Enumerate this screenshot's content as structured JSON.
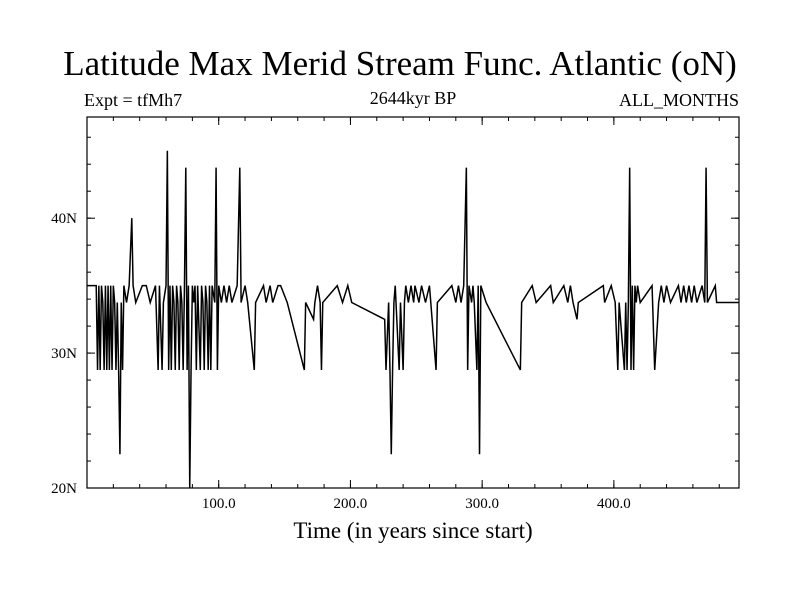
{
  "chart_data": {
    "type": "line",
    "title": "Latitude Max Merid Stream Func. Atlantic (oN)",
    "subtitle_left": "Expt = tfMh7",
    "subtitle_center": "2644kyr BP",
    "subtitle_right": "ALL_MONTHS",
    "xlabel": "Time (in years since start)",
    "ylabel": "",
    "xlim": [
      0,
      495
    ],
    "ylim": [
      20,
      47.5
    ],
    "x_ticks": [
      {
        "value": 100,
        "label": "100.0"
      },
      {
        "value": 200,
        "label": "200.0"
      },
      {
        "value": 300,
        "label": "300.0"
      },
      {
        "value": 400,
        "label": "400.0"
      }
    ],
    "y_ticks": [
      {
        "value": 20,
        "label": "20N"
      },
      {
        "value": 30,
        "label": "30N"
      },
      {
        "value": 40,
        "label": "40N"
      }
    ],
    "x_minor_step": 20,
    "y_minor_step": 2,
    "baseline": 33.75,
    "default_upper": 35.0,
    "levels": [
      20.0,
      22.5,
      28.75,
      33.75,
      35.0,
      40.0,
      43.75,
      45.0
    ],
    "events": [
      [
        0,
        35.0
      ],
      [
        7,
        35.0
      ],
      [
        8,
        28.75
      ],
      [
        9,
        35.0
      ],
      [
        10,
        28.75
      ],
      [
        11,
        35.0
      ],
      [
        12,
        33.75
      ],
      [
        13,
        28.75
      ],
      [
        14,
        35.0
      ],
      [
        15,
        28.75
      ],
      [
        16,
        35.0
      ],
      [
        17,
        28.75
      ],
      [
        18,
        35.0
      ],
      [
        19,
        28.75
      ],
      [
        20,
        35.0
      ],
      [
        21,
        33.75
      ],
      [
        22,
        28.75
      ],
      [
        23,
        33.75
      ],
      [
        24,
        28.75
      ],
      [
        25,
        22.5
      ],
      [
        26,
        33.75
      ],
      [
        27,
        28.75
      ],
      [
        28,
        35.0
      ],
      [
        30,
        33.75
      ],
      [
        32,
        35.0
      ],
      [
        34,
        40.0
      ],
      [
        35,
        35.0
      ],
      [
        37,
        33.75
      ],
      [
        42,
        35.0
      ],
      [
        45,
        35.0
      ],
      [
        48,
        33.75
      ],
      [
        52,
        35.0
      ],
      [
        54,
        28.75
      ],
      [
        55,
        35.0
      ],
      [
        57,
        28.75
      ],
      [
        58,
        33.75
      ],
      [
        60,
        35.0
      ],
      [
        61,
        45.0
      ],
      [
        62,
        28.75
      ],
      [
        63,
        35.0
      ],
      [
        64,
        28.75
      ],
      [
        65,
        35.0
      ],
      [
        66,
        33.75
      ],
      [
        67,
        28.75
      ],
      [
        68,
        35.0
      ],
      [
        69,
        33.75
      ],
      [
        70,
        28.75
      ],
      [
        71,
        35.0
      ],
      [
        72,
        33.75
      ],
      [
        73,
        28.75
      ],
      [
        74,
        35.0
      ],
      [
        75,
        43.75
      ],
      [
        76,
        28.75
      ],
      [
        77,
        35.0
      ],
      [
        78,
        20.0
      ],
      [
        79,
        28.75
      ],
      [
        80,
        35.0
      ],
      [
        81,
        33.75
      ],
      [
        82,
        35.0
      ],
      [
        83,
        28.75
      ],
      [
        84,
        35.0
      ],
      [
        86,
        28.75
      ],
      [
        87,
        35.0
      ],
      [
        88,
        33.75
      ],
      [
        89,
        28.75
      ],
      [
        90,
        35.0
      ],
      [
        91,
        33.75
      ],
      [
        92,
        28.75
      ],
      [
        93,
        35.0
      ],
      [
        94,
        28.75
      ],
      [
        95,
        35.0
      ],
      [
        97,
        33.75
      ],
      [
        98,
        43.75
      ],
      [
        99,
        28.75
      ],
      [
        100,
        35.0
      ],
      [
        102,
        33.75
      ],
      [
        104,
        35.0
      ],
      [
        106,
        33.75
      ],
      [
        108,
        35.0
      ],
      [
        110,
        33.75
      ],
      [
        114,
        35.0
      ],
      [
        116,
        43.75
      ],
      [
        117,
        33.75
      ],
      [
        120,
        35.0
      ],
      [
        122,
        33.75
      ],
      [
        127,
        28.75
      ],
      [
        128,
        33.75
      ],
      [
        134,
        35.0
      ],
      [
        136,
        33.75
      ],
      [
        139,
        35.0
      ],
      [
        141,
        33.75
      ],
      [
        145,
        35.0
      ],
      [
        147,
        35.0
      ],
      [
        152,
        33.75
      ],
      [
        165,
        28.75
      ],
      [
        166,
        33.75
      ],
      [
        172,
        32.5
      ],
      [
        173,
        33.75
      ],
      [
        175,
        35.0
      ],
      [
        177,
        33.75
      ],
      [
        178,
        28.75
      ],
      [
        179,
        33.75
      ],
      [
        190,
        35.0
      ],
      [
        194,
        33.75
      ],
      [
        198,
        35.0
      ],
      [
        201,
        33.75
      ],
      [
        226,
        32.5
      ],
      [
        227,
        28.75
      ],
      [
        229,
        33.75
      ],
      [
        230,
        28.75
      ],
      [
        231,
        22.5
      ],
      [
        232,
        28.75
      ],
      [
        233,
        33.75
      ],
      [
        234,
        35.0
      ],
      [
        237,
        28.75
      ],
      [
        238,
        33.75
      ],
      [
        240,
        28.75
      ],
      [
        241,
        33.75
      ],
      [
        242,
        35.0
      ],
      [
        244,
        33.75
      ],
      [
        246,
        35.0
      ],
      [
        248,
        33.75
      ],
      [
        249,
        35.0
      ],
      [
        252,
        33.75
      ],
      [
        254,
        35.0
      ],
      [
        257,
        33.75
      ],
      [
        260,
        35.0
      ],
      [
        261,
        33.75
      ],
      [
        265,
        28.75
      ],
      [
        266,
        33.75
      ],
      [
        277,
        35.0
      ],
      [
        280,
        33.75
      ],
      [
        282,
        35.0
      ],
      [
        284,
        33.75
      ],
      [
        286,
        35.0
      ],
      [
        288,
        43.75
      ],
      [
        289,
        28.75
      ],
      [
        290,
        35.0
      ],
      [
        292,
        33.75
      ],
      [
        293,
        35.0
      ],
      [
        294,
        33.75
      ],
      [
        296,
        28.75
      ],
      [
        297,
        35.0
      ],
      [
        298,
        22.5
      ],
      [
        299,
        35.0
      ],
      [
        303,
        33.75
      ],
      [
        329,
        28.75
      ],
      [
        330,
        33.75
      ],
      [
        338,
        35.0
      ],
      [
        341,
        33.75
      ],
      [
        352,
        35.0
      ],
      [
        354,
        33.75
      ],
      [
        362,
        35.0
      ],
      [
        365,
        33.75
      ],
      [
        367,
        35.0
      ],
      [
        369,
        33.75
      ],
      [
        372,
        32.5
      ],
      [
        373,
        33.75
      ],
      [
        392,
        35.0
      ],
      [
        393,
        33.75
      ],
      [
        398,
        35.0
      ],
      [
        401,
        33.75
      ],
      [
        403,
        28.75
      ],
      [
        404,
        33.75
      ],
      [
        408,
        28.75
      ],
      [
        409,
        33.75
      ],
      [
        410,
        28.75
      ],
      [
        411,
        33.75
      ],
      [
        412,
        43.75
      ],
      [
        413,
        28.75
      ],
      [
        414,
        35.0
      ],
      [
        415,
        28.75
      ],
      [
        416,
        35.0
      ],
      [
        417,
        33.75
      ],
      [
        418,
        35.0
      ],
      [
        420,
        33.75
      ],
      [
        429,
        35.0
      ],
      [
        431,
        28.75
      ],
      [
        434,
        33.75
      ],
      [
        436,
        35.0
      ],
      [
        438,
        33.75
      ],
      [
        440,
        35.0
      ],
      [
        443,
        33.75
      ],
      [
        449,
        35.0
      ],
      [
        451,
        33.75
      ],
      [
        453,
        35.0
      ],
      [
        455,
        33.75
      ],
      [
        457,
        35.0
      ],
      [
        459,
        33.75
      ],
      [
        461,
        35.0
      ],
      [
        463,
        33.75
      ],
      [
        467,
        35.0
      ],
      [
        469,
        33.75
      ],
      [
        470,
        43.75
      ],
      [
        471,
        33.75
      ],
      [
        477,
        35.0
      ],
      [
        478,
        33.75
      ],
      [
        495,
        33.75
      ]
    ]
  }
}
